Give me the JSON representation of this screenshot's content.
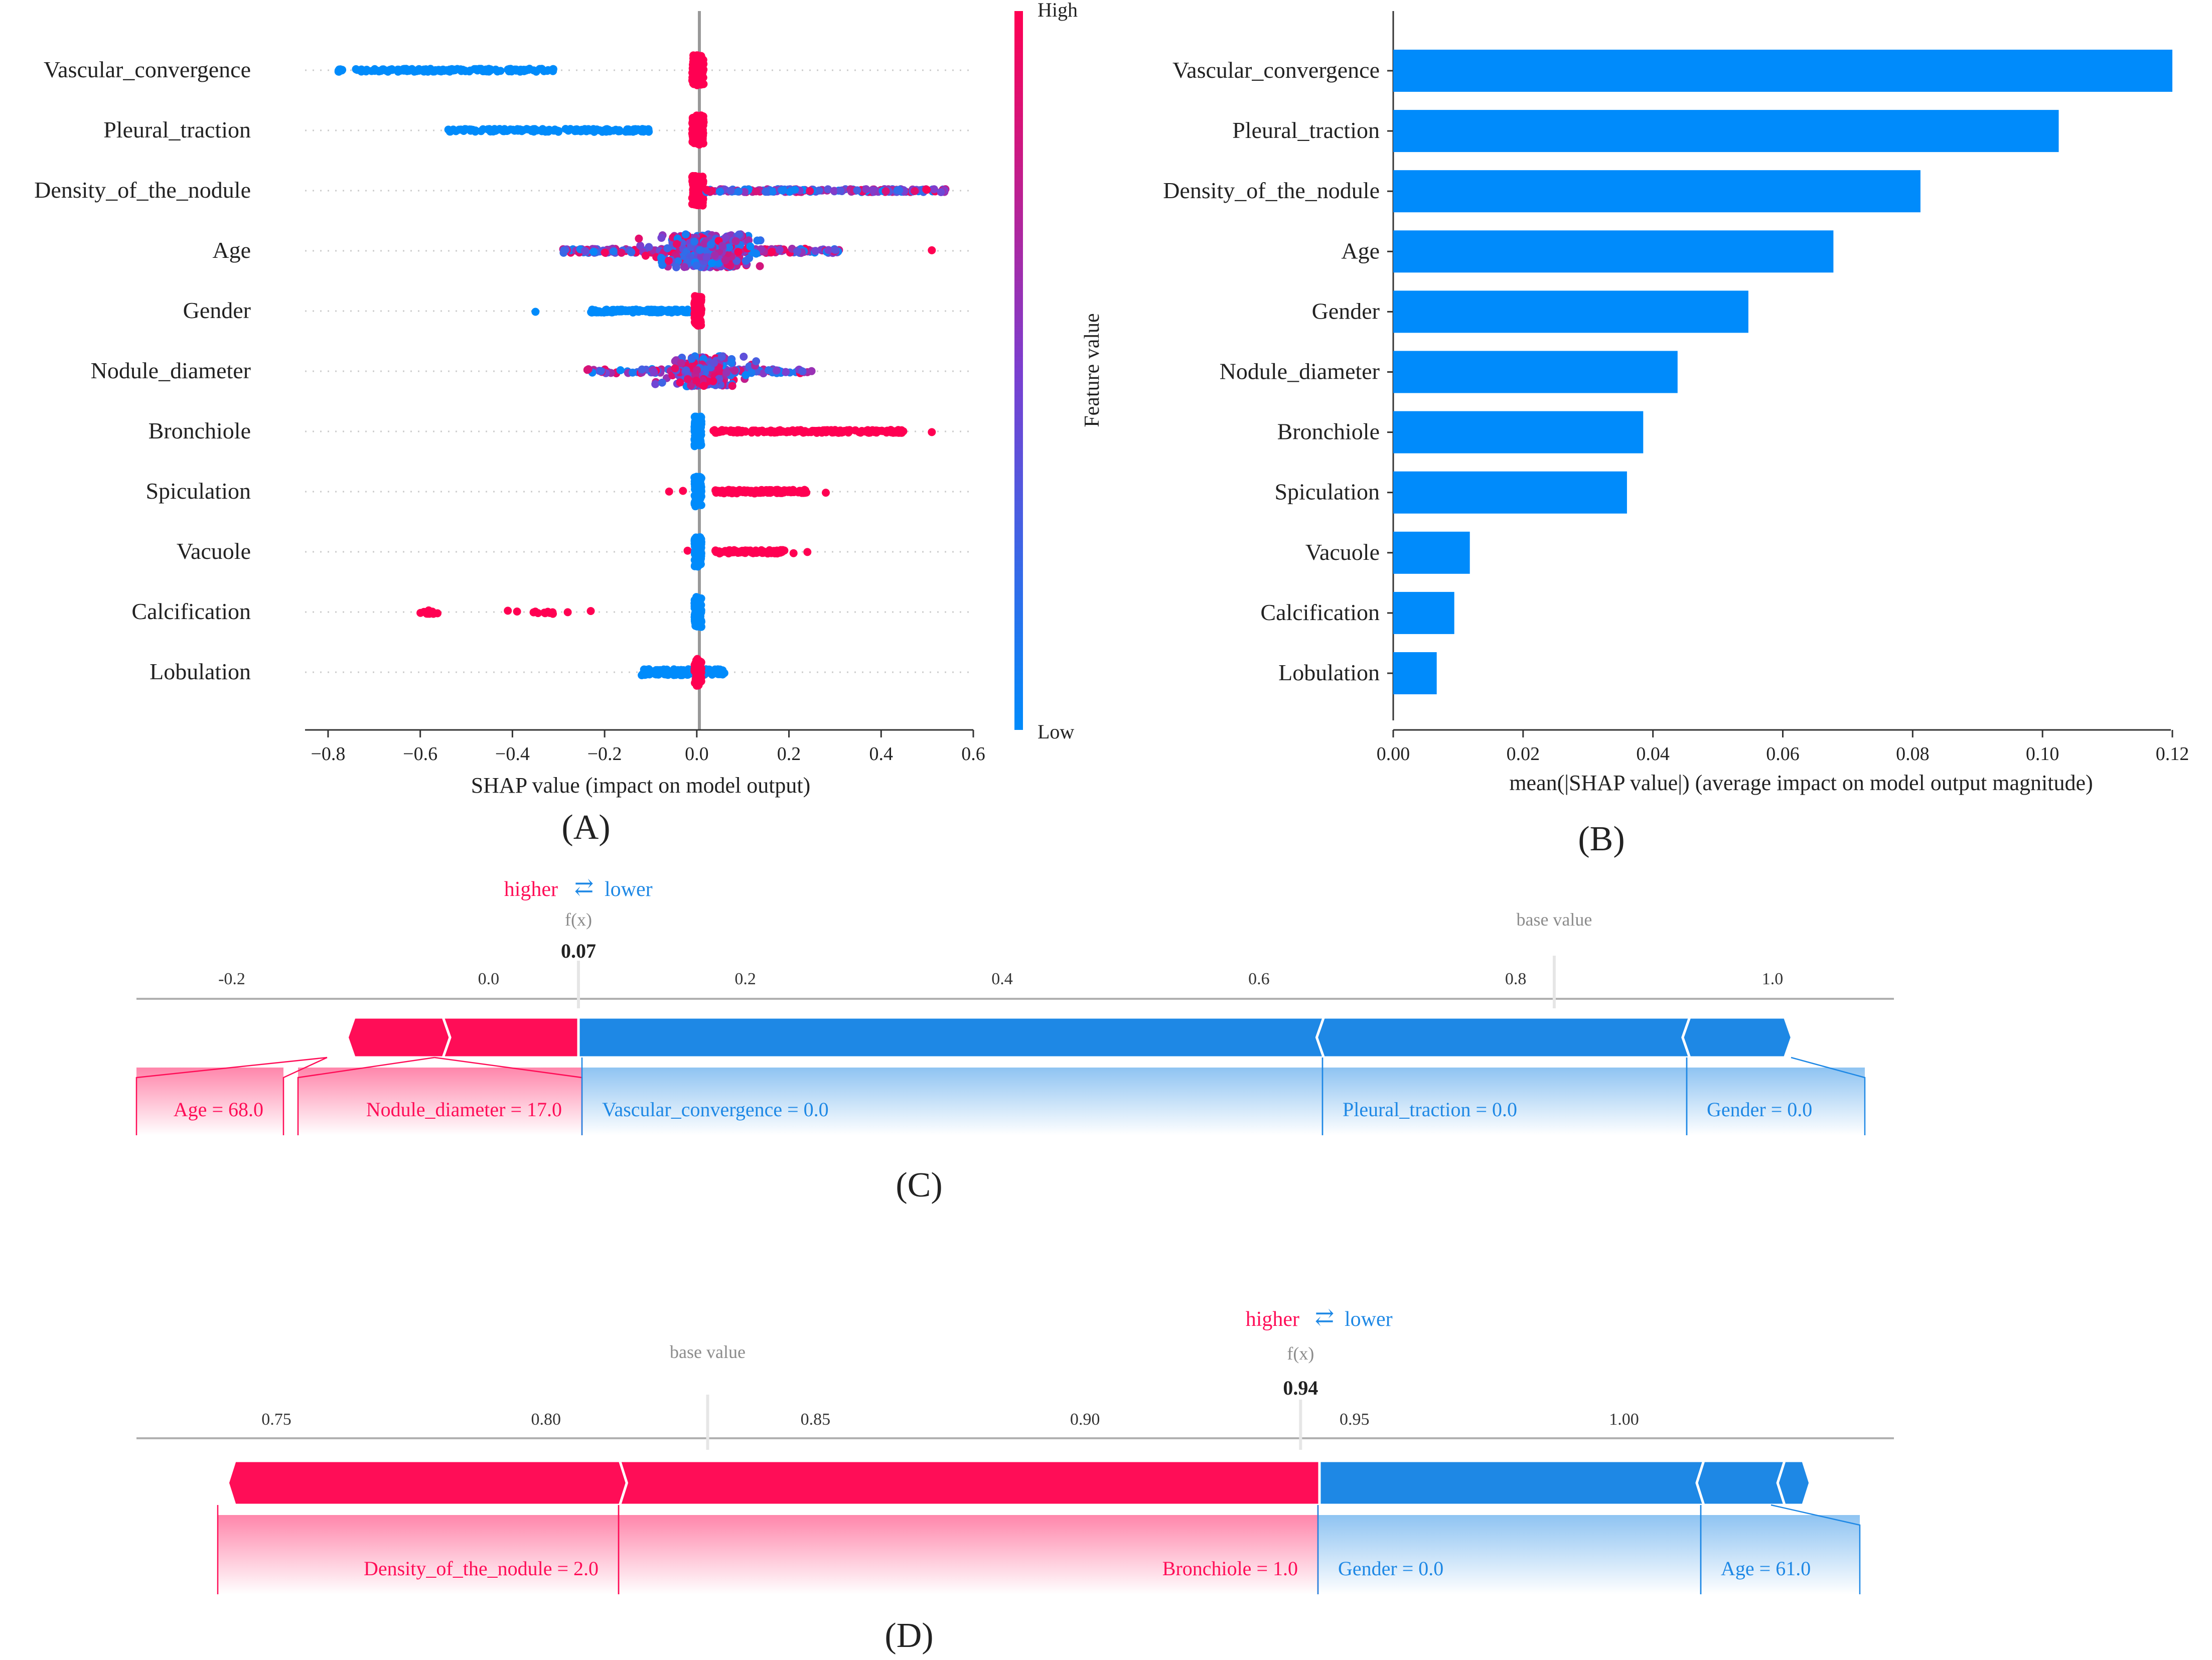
{
  "chart_data": [
    {
      "panel": "A",
      "type": "scatter",
      "subtype": "shap-beeswarm",
      "panel_label": "(A)",
      "xlabel": "SHAP value (impact on model output)",
      "xlim": [
        -0.85,
        0.6
      ],
      "xticks": [
        -0.8,
        -0.6,
        -0.4,
        -0.2,
        0.0,
        0.2,
        0.4,
        0.6
      ],
      "xtick_labels": [
        "−0.8",
        "−0.6",
        "−0.4",
        "−0.2",
        "0.0",
        "0.2",
        "0.4",
        "0.6"
      ],
      "colorbar": {
        "high_label": "High",
        "low_label": "Low",
        "title": "Feature value",
        "low_color": "#008bfb",
        "high_color": "#ff0052"
      },
      "features": [
        {
          "name": "Vascular_convergence",
          "clusters": [
            {
              "kind": "uniform",
              "from": -0.78,
              "to": -0.31,
              "count": 160,
              "color": "low",
              "spread": 0.05
            },
            {
              "kind": "uniform",
              "from": -0.01,
              "to": 0.015,
              "count": 120,
              "color": "high",
              "spread": 0.5
            }
          ]
        },
        {
          "name": "Pleural_traction",
          "clusters": [
            {
              "kind": "uniform",
              "from": -0.54,
              "to": -0.1,
              "count": 150,
              "color": "low",
              "spread": 0.05
            },
            {
              "kind": "uniform",
              "from": -0.01,
              "to": 0.015,
              "count": 120,
              "color": "high",
              "spread": 0.5
            }
          ]
        },
        {
          "name": "Density_of_the_nodule",
          "clusters": [
            {
              "kind": "uniform",
              "from": -0.01,
              "to": 0.015,
              "count": 120,
              "color": "high",
              "spread": 0.5
            },
            {
              "kind": "uniform",
              "from": 0.02,
              "to": 0.54,
              "count": 200,
              "color": "mixed",
              "spread": 0.05
            }
          ]
        },
        {
          "name": "Age",
          "clusters": [
            {
              "kind": "uniform",
              "from": -0.29,
              "to": 0.31,
              "count": 230,
              "color": "mixed",
              "spread": 0.07
            },
            {
              "kind": "normal",
              "mean": 0.02,
              "sd": 0.05,
              "count": 320,
              "color": "mixed",
              "spread": 0.55
            },
            {
              "kind": "point",
              "at": 0.51,
              "color": "high"
            }
          ]
        },
        {
          "name": "Gender",
          "clusters": [
            {
              "kind": "point",
              "at": -0.35,
              "color": "low"
            },
            {
              "kind": "uniform",
              "from": -0.23,
              "to": -0.01,
              "count": 150,
              "color": "low",
              "spread": 0.05
            },
            {
              "kind": "uniform",
              "from": -0.005,
              "to": 0.01,
              "count": 120,
              "color": "high",
              "spread": 0.5
            }
          ]
        },
        {
          "name": "Nodule_diameter",
          "clusters": [
            {
              "kind": "uniform",
              "from": -0.24,
              "to": 0.25,
              "count": 120,
              "color": "mixed",
              "spread": 0.07
            },
            {
              "kind": "normal",
              "mean": 0.01,
              "sd": 0.04,
              "count": 260,
              "color": "mixed",
              "spread": 0.5
            }
          ]
        },
        {
          "name": "Bronchiole",
          "clusters": [
            {
              "kind": "uniform",
              "from": -0.005,
              "to": 0.01,
              "count": 120,
              "color": "low",
              "spread": 0.5
            },
            {
              "kind": "uniform",
              "from": 0.03,
              "to": 0.45,
              "count": 170,
              "color": "high",
              "spread": 0.05
            },
            {
              "kind": "point",
              "at": 0.51,
              "color": "high"
            }
          ]
        },
        {
          "name": "Spiculation",
          "clusters": [
            {
              "kind": "point",
              "at": -0.06,
              "color": "high"
            },
            {
              "kind": "point",
              "at": -0.03,
              "color": "high"
            },
            {
              "kind": "uniform",
              "from": -0.005,
              "to": 0.01,
              "count": 120,
              "color": "low",
              "spread": 0.5
            },
            {
              "kind": "uniform",
              "from": 0.04,
              "to": 0.24,
              "count": 140,
              "color": "high",
              "spread": 0.06
            },
            {
              "kind": "point",
              "at": 0.28,
              "color": "high"
            }
          ]
        },
        {
          "name": "Vacuole",
          "clusters": [
            {
              "kind": "point",
              "at": -0.02,
              "color": "high"
            },
            {
              "kind": "uniform",
              "from": -0.005,
              "to": 0.01,
              "count": 120,
              "color": "low",
              "spread": 0.5
            },
            {
              "kind": "uniform",
              "from": 0.04,
              "to": 0.19,
              "count": 110,
              "color": "high",
              "spread": 0.06
            },
            {
              "kind": "point",
              "at": 0.21,
              "color": "high"
            },
            {
              "kind": "point",
              "at": 0.24,
              "color": "high"
            }
          ]
        },
        {
          "name": "Calcification",
          "clusters": [
            {
              "kind": "uniform",
              "from": -0.6,
              "to": -0.56,
              "count": 14,
              "color": "high",
              "spread": 0.06
            },
            {
              "kind": "point",
              "at": -0.41,
              "color": "high"
            },
            {
              "kind": "point",
              "at": -0.39,
              "color": "high"
            },
            {
              "kind": "uniform",
              "from": -0.36,
              "to": -0.31,
              "count": 10,
              "color": "high",
              "spread": 0.06
            },
            {
              "kind": "point",
              "at": -0.28,
              "color": "high"
            },
            {
              "kind": "point",
              "at": -0.23,
              "color": "high"
            },
            {
              "kind": "uniform",
              "from": -0.005,
              "to": 0.01,
              "count": 120,
              "color": "low",
              "spread": 0.5
            }
          ]
        },
        {
          "name": "Lobulation",
          "clusters": [
            {
              "kind": "uniform",
              "from": -0.12,
              "to": 0.06,
              "count": 150,
              "color": "low",
              "spread": 0.1
            },
            {
              "kind": "uniform",
              "from": -0.005,
              "to": 0.01,
              "count": 80,
              "color": "high",
              "spread": 0.45
            }
          ]
        }
      ]
    },
    {
      "panel": "B",
      "type": "bar",
      "orientation": "horizontal",
      "panel_label": "(B)",
      "xlabel": "mean(|SHAP value|) (average impact on model output magnitude)",
      "xlim": [
        0,
        0.12
      ],
      "xticks": [
        0.0,
        0.02,
        0.04,
        0.06,
        0.08,
        0.1,
        0.12
      ],
      "xtick_labels": [
        "0.00",
        "0.02",
        "0.04",
        "0.06",
        "0.08",
        "0.10",
        "0.12"
      ],
      "bar_color": "#008bfb",
      "categories": [
        "Vascular_convergence",
        "Pleural_traction",
        "Density_of_the_nodule",
        "Age",
        "Gender",
        "Nodule_diameter",
        "Bronchiole",
        "Spiculation",
        "Vacuole",
        "Calcification",
        "Lobulation"
      ],
      "values": [
        0.12,
        0.1025,
        0.0812,
        0.0678,
        0.0547,
        0.0438,
        0.0385,
        0.036,
        0.0118,
        0.0094,
        0.0067
      ]
    },
    {
      "panel": "C",
      "type": "bar",
      "subtype": "shap-force-plot",
      "panel_label": "(C)",
      "legend": {
        "higher": "higher",
        "arrows": "⇄",
        "lower": "lower"
      },
      "fx_label": "f(x)",
      "fx_value": 0.07,
      "fx_text": "0.07",
      "base_label": "base value",
      "base_value": 0.83,
      "xlim": [
        -0.26,
        1.1
      ],
      "xticks": [
        -0.2,
        0.0,
        0.2,
        0.4,
        0.6,
        0.8,
        1.0
      ],
      "xtick_labels": [
        "-0.2",
        "0.0",
        "0.2",
        "0.4",
        "0.6",
        "0.8",
        "1.0"
      ],
      "positive_color": "#ff0d57",
      "negative_color": "#1e88e5",
      "positive": [
        {
          "label": "Age = 68.0",
          "from": -0.11,
          "to": -0.03
        },
        {
          "label": "Nodule_diameter = 17.0",
          "from": -0.03,
          "to": 0.07
        }
      ],
      "negative": [
        {
          "label": "Vascular_convergence = 0.0",
          "from": 0.07,
          "to": 0.645
        },
        {
          "label": "Pleural_traction = 0.0",
          "from": 0.645,
          "to": 0.93
        },
        {
          "label": "Gender = 0.0",
          "from": 0.93,
          "to": 1.015
        }
      ]
    },
    {
      "panel": "D",
      "type": "bar",
      "subtype": "shap-force-plot",
      "panel_label": "(D)",
      "legend": {
        "higher": "higher",
        "arrows": "⇄",
        "lower": "lower"
      },
      "fx_label": "f(x)",
      "fx_value": 0.94,
      "fx_text": "0.94",
      "base_label": "base value",
      "base_value": 0.83,
      "xlim": [
        0.734,
        1.04
      ],
      "xticks": [
        0.75,
        0.8,
        0.85,
        0.9,
        0.95,
        1.0
      ],
      "xtick_labels": [
        "0.75",
        "0.80",
        "0.85",
        "0.90",
        "0.95",
        "1.00"
      ],
      "positive_color": "#ff0d57",
      "negative_color": "#1e88e5",
      "positive": [
        {
          "label": "Density_of_the_nodule = 2.0",
          "from": 0.741,
          "to": 0.815
        },
        {
          "label": "Bronchiole = 1.0",
          "from": 0.815,
          "to": 0.9435
        }
      ],
      "negative": [
        {
          "label": "Gender = 0.0",
          "from": 0.9435,
          "to": 1.0135
        },
        {
          "label": "Age = 61.0",
          "from": 1.0135,
          "to": 1.0285
        },
        {
          "label": "",
          "from": 1.0285,
          "to": 1.0345
        }
      ]
    }
  ]
}
